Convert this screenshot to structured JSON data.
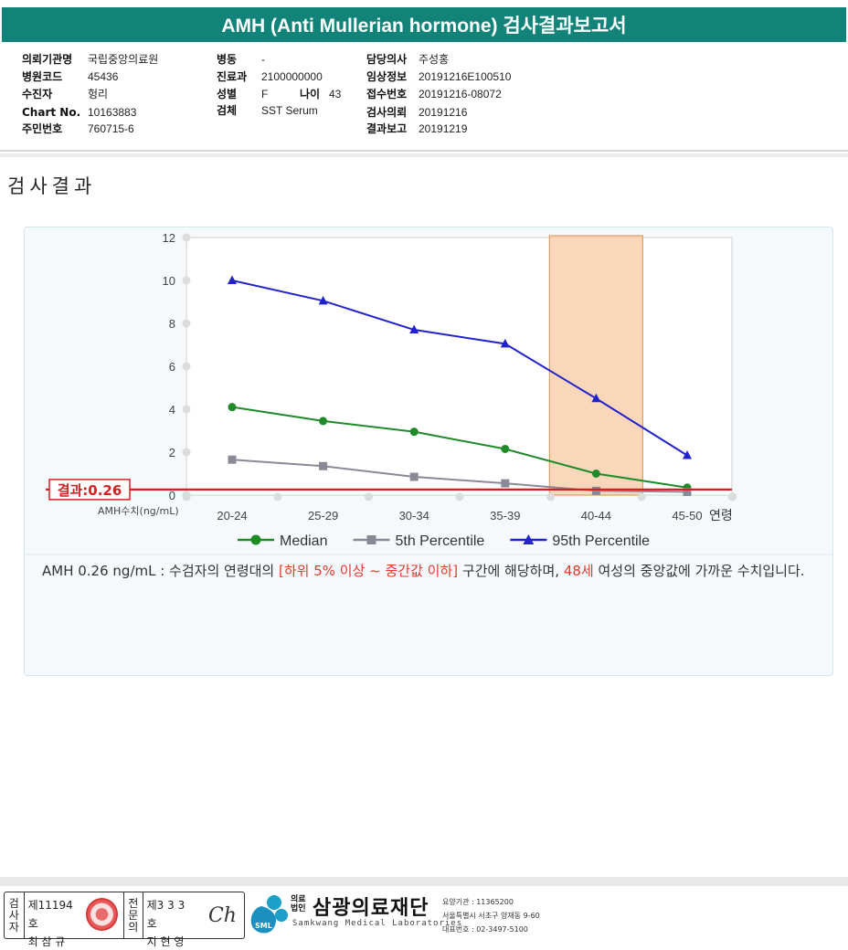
{
  "report_title": "AMH (Anti Mullerian hormone) 검사결과보고서",
  "info": {
    "col1": [
      {
        "label": "의뢰기관명",
        "value": "국립중앙의료원"
      },
      {
        "label": "병원코드",
        "value": "45436"
      },
      {
        "label": "수진자",
        "value": "헝리"
      },
      {
        "label": "Chart No.",
        "value": "10163883"
      },
      {
        "label": "주민번호",
        "value": "760715-6"
      }
    ],
    "col2": [
      {
        "label": "병동",
        "value": "-"
      },
      {
        "label": "진료과",
        "value": "2100000000"
      },
      {
        "label": "성별",
        "value": "F"
      },
      {
        "label": "검체",
        "value": "SST Serum"
      }
    ],
    "age_label": "나이",
    "age_value": "43",
    "col3": [
      {
        "label": "담당의사",
        "value": "주성홍"
      },
      {
        "label": "임상정보",
        "value": "20191216E100510"
      },
      {
        "label": "접수번호",
        "value": "20191216-08072"
      },
      {
        "label": "검사의뢰",
        "value": "20191216"
      },
      {
        "label": "결과보고",
        "value": "20191219"
      }
    ]
  },
  "section_title": "검사결과",
  "chart_data": {
    "type": "line",
    "categories": [
      "20-24",
      "25-29",
      "30-34",
      "35-39",
      "40-44",
      "45-50"
    ],
    "x_axis_suffix": "연령",
    "y_axis_unit_label": "AMH수치(ng/mL)",
    "ylim": [
      0,
      12
    ],
    "yticks": [
      0,
      2,
      4,
      6,
      8,
      10,
      12
    ],
    "series": [
      {
        "name": "Median",
        "color": "#1e8a28",
        "marker": "circle",
        "values": [
          4.1,
          3.45,
          2.95,
          2.15,
          1.0,
          0.35
        ]
      },
      {
        "name": "5th Percentile",
        "color": "#8a8a96",
        "marker": "square",
        "values": [
          1.65,
          1.35,
          0.85,
          0.55,
          0.2,
          0.15
        ]
      },
      {
        "name": "95th Percentile",
        "color": "#2222cc",
        "marker": "triangle",
        "values": [
          10.0,
          9.05,
          7.7,
          7.05,
          4.5,
          1.85
        ]
      }
    ],
    "result_value": 0.26,
    "result_label": "결과:0.26",
    "result_color": "#d42020",
    "highlight_category": "40-44",
    "highlight_color": "#f7c9a3",
    "grid": false,
    "legend_position": "bottom"
  },
  "description": {
    "part1": "AMH  0.26 ng/mL : 수검자의 연령대의 ",
    "range_text": "[하위 5% 이상 ~ 중간값 이하]",
    "part2": " 구간에 해당하며, ",
    "age_text": "48세",
    "part3": " 여성의 중앙값에 가까운 수치입니다."
  },
  "footer": {
    "inspector_label": "검사자",
    "inspector_no": "제11194호",
    "inspector_name": "최 삼 규",
    "specialist_label": "전문의",
    "specialist_no": "제3 3 3 호",
    "specialist_name": "지 현 영",
    "signature": "Ch",
    "org_prefix": "의료법인",
    "org_name": "삼광의료재단",
    "org_english": "Samkwang Medical Laboratories",
    "logo_badge": "SML",
    "org_code": "요양기관 : 11365200",
    "org_address": "서울특별시 서초구 양재동 9-60",
    "org_phone": "대표번호 : 02-3497-5100"
  }
}
